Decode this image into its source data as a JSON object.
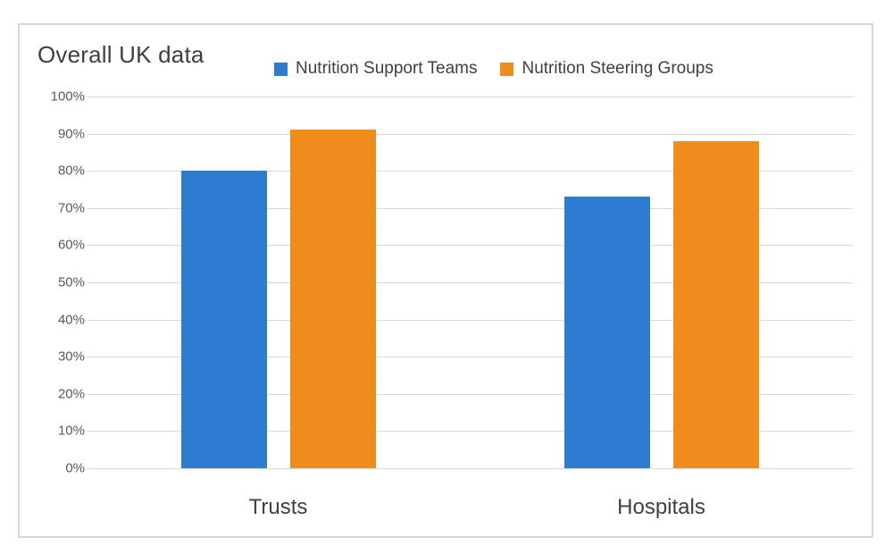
{
  "chart": {
    "frame_border_color": "#D8D8D8",
    "gridline_color": "#D9D9D9",
    "title_color": "#3F3F3F",
    "axis_label_color": "#595959",
    "category_label_color": "#404040",
    "background": "#ffffff"
  },
  "chart_data": {
    "type": "bar",
    "title": "Overall UK data",
    "categories": [
      "Trusts",
      "Hospitals"
    ],
    "series": [
      {
        "name": "Nutrition Support Teams",
        "color": "#2D7CD1",
        "values": [
          80,
          73
        ]
      },
      {
        "name": "Nutrition Steering Groups",
        "color": "#F08B1D",
        "values": [
          91,
          88
        ]
      }
    ],
    "ylim": [
      0,
      100
    ],
    "ytick_step": 10,
    "ytick_labels": [
      "0%",
      "10%",
      "20%",
      "30%",
      "40%",
      "50%",
      "60%",
      "70%",
      "80%",
      "90%",
      "100%"
    ],
    "ytick_format": "percent",
    "grid": true,
    "legend_position": "top",
    "xlabel": "",
    "ylabel": ""
  }
}
